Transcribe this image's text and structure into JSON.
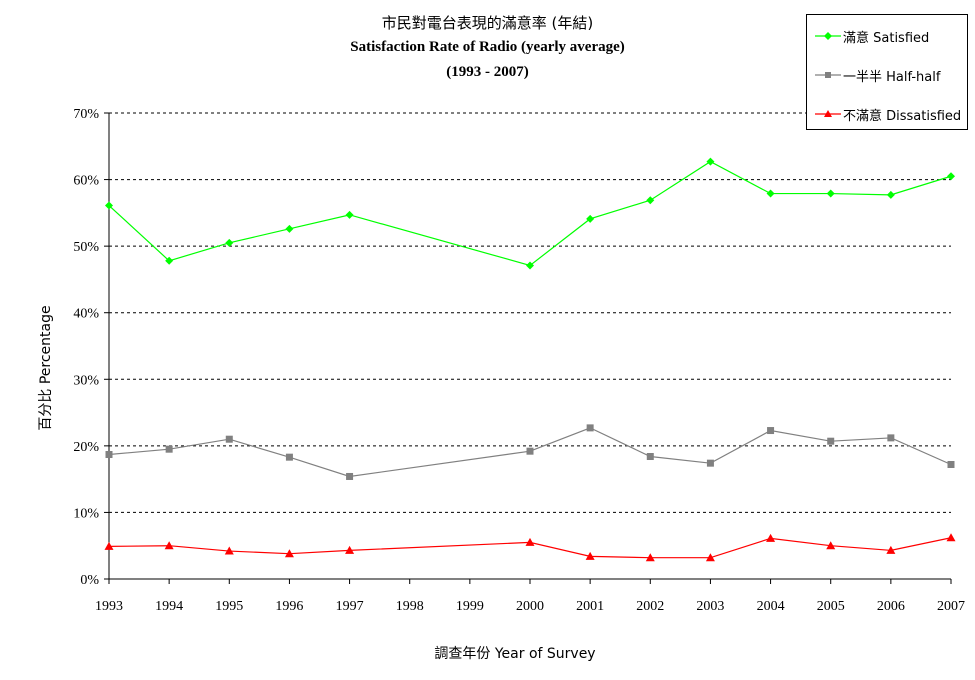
{
  "title": {
    "line1": "市民對電台表現的滿意率 (年結)",
    "line2": "Satisfaction Rate of Radio (yearly average)",
    "line3": "(1993 - 2007)"
  },
  "chart_data": {
    "type": "line",
    "title": "市民對電台表現的滿意率 (年結) Satisfaction Rate of Radio (yearly average) (1993 - 2007)",
    "xlabel": "調查年份 Year of Survey",
    "ylabel": "百分比 Percentage",
    "ylim": [
      0,
      70
    ],
    "yticks": [
      0,
      10,
      20,
      30,
      40,
      50,
      60,
      70
    ],
    "ytick_labels": [
      "0%",
      "10%",
      "20%",
      "30%",
      "40%",
      "50%",
      "60%",
      "70%"
    ],
    "categories": [
      "1993",
      "1994",
      "1995",
      "1996",
      "1997",
      "1998",
      "1999",
      "2000",
      "2001",
      "2002",
      "2003",
      "2004",
      "2005",
      "2006",
      "2007"
    ],
    "grid": "horizontal dashed",
    "legend_position": "top-right",
    "series": [
      {
        "name": "滿意 Satisfied",
        "color": "#00ff00",
        "marker": "diamond",
        "values": [
          56.1,
          47.8,
          50.5,
          52.6,
          54.7,
          null,
          null,
          47.1,
          54.1,
          56.9,
          62.7,
          57.9,
          57.9,
          57.7,
          60.5
        ]
      },
      {
        "name": "一半半 Half-half",
        "color": "#808080",
        "marker": "square",
        "values": [
          18.7,
          19.5,
          21.0,
          18.3,
          15.4,
          null,
          null,
          19.2,
          22.7,
          18.4,
          17.4,
          22.3,
          20.7,
          21.2,
          17.2
        ]
      },
      {
        "name": "不滿意 Dissatisfied",
        "color": "#ff0000",
        "marker": "triangle",
        "values": [
          4.9,
          5.0,
          4.2,
          3.8,
          4.3,
          null,
          null,
          5.5,
          3.4,
          3.2,
          3.2,
          6.1,
          5.0,
          4.3,
          6.2
        ]
      }
    ]
  }
}
